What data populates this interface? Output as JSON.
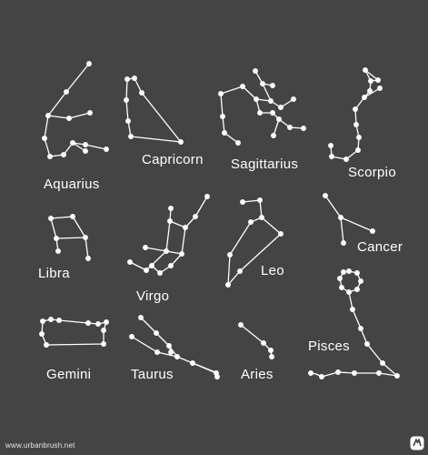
{
  "constellations": [
    {
      "id": "aquarius",
      "name": "Aquarius"
    },
    {
      "id": "capricorn",
      "name": "Capricorn"
    },
    {
      "id": "sagittarius",
      "name": "Sagittarius"
    },
    {
      "id": "scorpio",
      "name": "Scorpio"
    },
    {
      "id": "libra",
      "name": "Libra"
    },
    {
      "id": "virgo",
      "name": "Virgo"
    },
    {
      "id": "leo",
      "name": "Leo"
    },
    {
      "id": "cancer",
      "name": "Cancer"
    },
    {
      "id": "gemini",
      "name": "Gemini"
    },
    {
      "id": "taurus",
      "name": "Taurus"
    },
    {
      "id": "aries",
      "name": "Aries"
    },
    {
      "id": "pisces",
      "name": "Pisces"
    }
  ],
  "footer": {
    "url": "www.urbanbrush.net"
  },
  "colors": {
    "background": "#444444",
    "stars": "#ffffff"
  },
  "icons": {
    "brand": "urbanbrush-logo-icon"
  }
}
